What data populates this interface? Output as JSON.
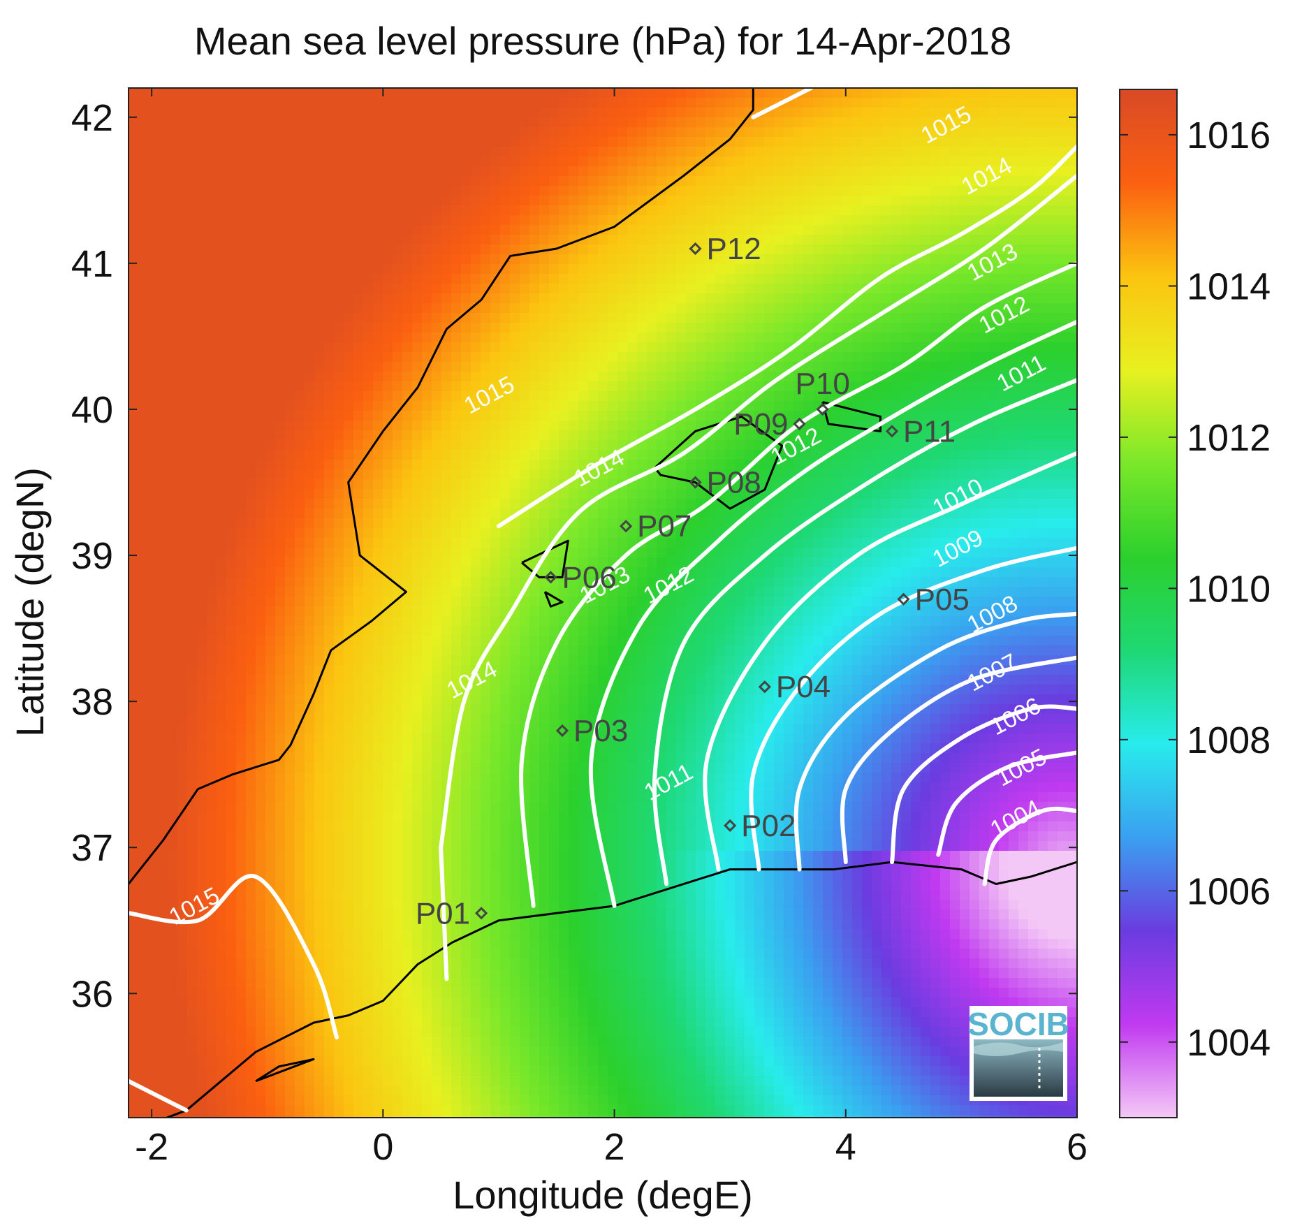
{
  "chart_data": {
    "type": "heatmap",
    "title": "Mean sea level pressure (hPa) for 14-Apr-2018",
    "xlabel": "Longitude (degE)",
    "ylabel": "Latitude (degN)",
    "xlim": [
      -2.2,
      6
    ],
    "ylim": [
      35.15,
      42.2
    ],
    "x_ticks": [
      -2,
      0,
      2,
      4,
      6
    ],
    "y_ticks": [
      36,
      37,
      38,
      39,
      40,
      41,
      42
    ],
    "colorbar": {
      "range": [
        1003,
        1016.6
      ],
      "ticks": [
        1004,
        1006,
        1008,
        1010,
        1012,
        1014,
        1016
      ],
      "colors": [
        "#f4c8f6",
        "#c03af0",
        "#6a3ce0",
        "#3aa0f0",
        "#28ecec",
        "#1ed873",
        "#2cd02c",
        "#7ae82a",
        "#e8f020",
        "#fbc410",
        "#fb6010",
        "#d84a26"
      ]
    },
    "field": {
      "low_center": {
        "lon": 5.9,
        "lat": 36.9,
        "value": 1003.2
      },
      "background_value": 1016.2
    },
    "contours": [
      {
        "level": 1015,
        "label": "1015",
        "lines": [
          [
            [
              1.0,
              39.2
            ],
            [
              1.8,
              39.6
            ],
            [
              2.7,
              40.0
            ],
            [
              3.5,
              40.4
            ],
            [
              4.3,
              40.9
            ],
            [
              5.0,
              41.2
            ],
            [
              5.6,
              41.5
            ],
            [
              6.0,
              41.8
            ]
          ],
          [
            [
              -2.2,
              36.55
            ],
            [
              -1.6,
              36.5
            ],
            [
              -1.1,
              36.8
            ],
            [
              -0.6,
              36.2
            ],
            [
              -0.4,
              35.7
            ]
          ],
          [
            [
              -2.2,
              35.4
            ],
            [
              -1.7,
              35.2
            ]
          ],
          [
            [
              3.2,
              42.0
            ],
            [
              3.7,
              42.2
            ]
          ]
        ],
        "label_at": [
          [
            0.95,
            40.05
          ],
          [
            4.9,
            41.9
          ],
          [
            -1.6,
            36.55
          ]
        ]
      },
      {
        "level": 1014,
        "label": "1014",
        "lines": [
          [
            [
              0.5,
              37.0
            ],
            [
              0.7,
              38.0
            ],
            [
              1.1,
              38.6
            ],
            [
              1.7,
              39.3
            ],
            [
              2.6,
              39.7
            ],
            [
              3.4,
              40.2
            ],
            [
              4.4,
              40.7
            ],
            [
              5.2,
              41.1
            ],
            [
              6.0,
              41.6
            ]
          ],
          [
            [
              0.55,
              36.1
            ],
            [
              0.5,
              37.0
            ]
          ]
        ],
        "label_at": [
          [
            0.8,
            38.1
          ],
          [
            1.9,
            39.55
          ],
          [
            5.25,
            41.55
          ]
        ]
      },
      {
        "level": 1013,
        "label": "1013",
        "lines": [
          [
            [
              1.3,
              36.6
            ],
            [
              1.2,
              37.6
            ],
            [
              1.5,
              38.4
            ],
            [
              2.1,
              39.0
            ],
            [
              2.8,
              39.35
            ],
            [
              3.6,
              39.9
            ],
            [
              4.5,
              40.3
            ],
            [
              5.2,
              40.7
            ],
            [
              6.0,
              41.0
            ]
          ]
        ],
        "label_at": [
          [
            1.95,
            38.75
          ],
          [
            5.3,
            40.96
          ]
        ]
      },
      {
        "level": 1012,
        "label": "1012",
        "lines": [
          [
            [
              2.0,
              36.6
            ],
            [
              1.8,
              37.6
            ],
            [
              2.2,
              38.5
            ],
            [
              2.9,
              39.1
            ],
            [
              3.6,
              39.55
            ],
            [
              4.3,
              39.9
            ],
            [
              5.2,
              40.3
            ],
            [
              6.0,
              40.6
            ]
          ]
        ],
        "label_at": [
          [
            2.5,
            38.75
          ],
          [
            3.6,
            39.7
          ],
          [
            5.4,
            40.6
          ]
        ]
      },
      {
        "level": 1011,
        "label": "1011",
        "lines": [
          [
            [
              2.45,
              36.75
            ],
            [
              2.35,
              37.5
            ],
            [
              2.6,
              38.4
            ],
            [
              3.3,
              39.0
            ],
            [
              4.2,
              39.5
            ],
            [
              5.1,
              39.9
            ],
            [
              6.0,
              40.2
            ]
          ]
        ],
        "label_at": [
          [
            2.5,
            37.4
          ],
          [
            5.55,
            40.2
          ]
        ]
      },
      {
        "level": 1010,
        "label": "1010",
        "lines": [
          [
            [
              2.9,
              36.85
            ],
            [
              2.8,
              37.6
            ],
            [
              3.3,
              38.4
            ],
            [
              4.1,
              39.0
            ],
            [
              5.0,
              39.35
            ],
            [
              6.0,
              39.7
            ]
          ]
        ],
        "label_at": [
          [
            5.0,
            39.35
          ]
        ]
      },
      {
        "level": 1009,
        "label": "1009",
        "lines": [
          [
            [
              3.25,
              36.85
            ],
            [
              3.2,
              37.5
            ],
            [
              3.6,
              38.1
            ],
            [
              4.3,
              38.6
            ],
            [
              5.2,
              38.9
            ],
            [
              6.0,
              39.05
            ]
          ]
        ],
        "label_at": [
          [
            5.0,
            39.0
          ]
        ]
      },
      {
        "level": 1008,
        "label": "1008",
        "lines": [
          [
            [
              3.6,
              36.85
            ],
            [
              3.6,
              37.4
            ],
            [
              4.0,
              37.9
            ],
            [
              4.8,
              38.35
            ],
            [
              5.5,
              38.55
            ],
            [
              6.0,
              38.6
            ]
          ]
        ],
        "label_at": [
          [
            5.3,
            38.55
          ]
        ]
      },
      {
        "level": 1007,
        "label": "1007",
        "lines": [
          [
            [
              4.0,
              36.9
            ],
            [
              4.0,
              37.4
            ],
            [
              4.4,
              37.8
            ],
            [
              5.1,
              38.15
            ],
            [
              6.0,
              38.3
            ]
          ]
        ],
        "label_at": [
          [
            5.3,
            38.15
          ]
        ]
      },
      {
        "level": 1006,
        "label": "1006",
        "lines": [
          [
            [
              4.4,
              36.9
            ],
            [
              4.5,
              37.4
            ],
            [
              5.0,
              37.75
            ],
            [
              5.6,
              37.95
            ],
            [
              6.0,
              37.95
            ]
          ]
        ],
        "label_at": [
          [
            5.5,
            37.85
          ]
        ]
      },
      {
        "level": 1005,
        "label": "1005",
        "lines": [
          [
            [
              4.8,
              36.95
            ],
            [
              4.95,
              37.3
            ],
            [
              5.4,
              37.55
            ],
            [
              6.0,
              37.65
            ]
          ]
        ],
        "label_at": [
          [
            5.55,
            37.5
          ]
        ]
      },
      {
        "level": 1004,
        "label": "1004",
        "lines": [
          [
            [
              5.2,
              36.75
            ],
            [
              5.3,
              37.05
            ],
            [
              5.7,
              37.25
            ],
            [
              6.0,
              37.25
            ]
          ]
        ],
        "label_at": [
          [
            5.5,
            37.15
          ]
        ]
      }
    ],
    "coastlines": [
      [
        [
          3.2,
          42.2
        ],
        [
          3.2,
          42.05
        ],
        [
          3.0,
          41.85
        ],
        [
          2.6,
          41.6
        ],
        [
          2.0,
          41.25
        ],
        [
          1.5,
          41.1
        ],
        [
          1.1,
          41.05
        ],
        [
          0.85,
          40.75
        ],
        [
          0.55,
          40.55
        ],
        [
          0.3,
          40.15
        ],
        [
          0.0,
          39.85
        ],
        [
          -0.3,
          39.5
        ],
        [
          -0.2,
          39.0
        ],
        [
          0.2,
          38.75
        ],
        [
          -0.1,
          38.55
        ],
        [
          -0.45,
          38.35
        ],
        [
          -0.6,
          38.05
        ],
        [
          -0.8,
          37.7
        ],
        [
          -0.9,
          37.6
        ],
        [
          -1.3,
          37.5
        ],
        [
          -1.6,
          37.4
        ],
        [
          -1.9,
          37.05
        ],
        [
          -2.2,
          36.75
        ]
      ],
      [
        [
          -2.2,
          35.05
        ],
        [
          -1.7,
          35.2
        ],
        [
          -1.1,
          35.6
        ],
        [
          -0.6,
          35.8
        ],
        [
          -0.3,
          35.85
        ],
        [
          0.0,
          35.95
        ],
        [
          0.3,
          36.2
        ],
        [
          0.6,
          36.35
        ],
        [
          1.0,
          36.5
        ],
        [
          1.5,
          36.55
        ],
        [
          2.0,
          36.6
        ],
        [
          2.6,
          36.75
        ],
        [
          3.0,
          36.85
        ],
        [
          3.4,
          36.85
        ],
        [
          3.9,
          36.85
        ],
        [
          4.4,
          36.9
        ],
        [
          5.0,
          36.85
        ],
        [
          5.3,
          36.75
        ],
        [
          5.6,
          36.8
        ],
        [
          6.0,
          36.9
        ]
      ],
      [
        [
          2.35,
          39.6
        ],
        [
          2.7,
          39.85
        ],
        [
          3.1,
          39.95
        ],
        [
          3.45,
          39.75
        ],
        [
          3.3,
          39.45
        ],
        [
          3.0,
          39.32
        ],
        [
          2.7,
          39.5
        ],
        [
          2.4,
          39.55
        ],
        [
          2.35,
          39.6
        ]
      ],
      [
        [
          3.8,
          40.05
        ],
        [
          4.3,
          39.95
        ],
        [
          4.3,
          39.85
        ],
        [
          3.85,
          39.9
        ],
        [
          3.8,
          40.05
        ]
      ],
      [
        [
          1.2,
          38.95
        ],
        [
          1.6,
          39.1
        ],
        [
          1.55,
          38.85
        ],
        [
          1.35,
          38.85
        ],
        [
          1.2,
          38.95
        ]
      ],
      [
        [
          1.4,
          38.75
        ],
        [
          1.55,
          38.68
        ],
        [
          1.45,
          38.65
        ],
        [
          1.4,
          38.75
        ]
      ],
      [
        [
          -1.1,
          35.4
        ],
        [
          -0.6,
          35.55
        ],
        [
          -0.9,
          35.5
        ],
        [
          -1.1,
          35.4
        ]
      ]
    ],
    "stations": [
      {
        "id": "P01",
        "lon": 0.85,
        "lat": 36.55,
        "label_side": "left"
      },
      {
        "id": "P02",
        "lon": 3.0,
        "lat": 37.15,
        "label_side": "right"
      },
      {
        "id": "P03",
        "lon": 1.55,
        "lat": 37.8,
        "label_side": "right"
      },
      {
        "id": "P04",
        "lon": 3.3,
        "lat": 38.1,
        "label_side": "right"
      },
      {
        "id": "P05",
        "lon": 4.5,
        "lat": 38.7,
        "label_side": "right"
      },
      {
        "id": "P06",
        "lon": 1.45,
        "lat": 38.85,
        "label_side": "right"
      },
      {
        "id": "P07",
        "lon": 2.1,
        "lat": 39.2,
        "label_side": "right"
      },
      {
        "id": "P08",
        "lon": 2.7,
        "lat": 39.5,
        "label_side": "right"
      },
      {
        "id": "P09",
        "lon": 3.6,
        "lat": 39.9,
        "label_side": "left"
      },
      {
        "id": "P10",
        "lon": 3.8,
        "lat": 40.0,
        "label_side": "top"
      },
      {
        "id": "P11",
        "lon": 4.4,
        "lat": 39.85,
        "label_side": "right"
      },
      {
        "id": "P12",
        "lon": 2.7,
        "lat": 41.1,
        "label_side": "right"
      }
    ]
  },
  "logo": {
    "text": "SOCIB"
  }
}
